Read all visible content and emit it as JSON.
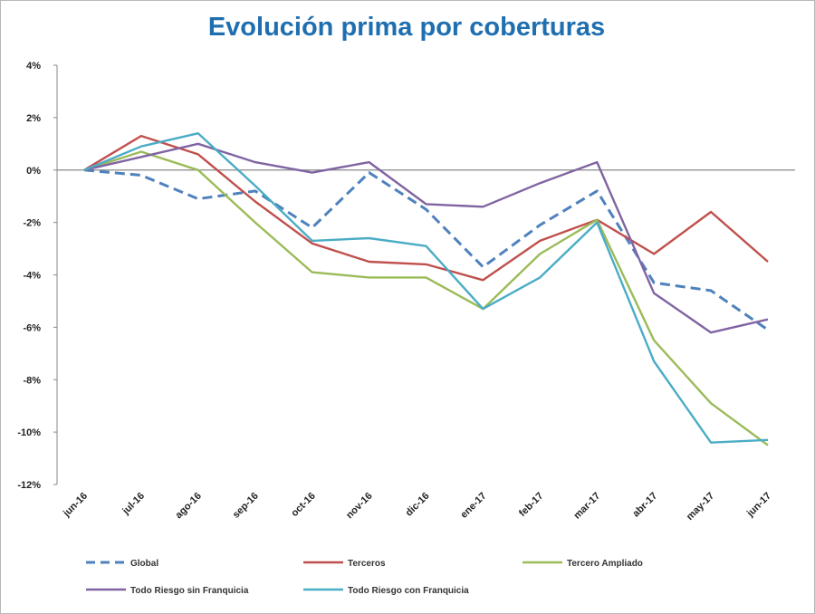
{
  "chart_data": {
    "type": "line",
    "title": "Evolución prima por coberturas",
    "xlabel": "",
    "ylabel": "",
    "categories": [
      "jun-16",
      "jul-16",
      "ago-16",
      "sep-16",
      "oct-16",
      "nov-16",
      "dic-16",
      "ene-17",
      "feb-17",
      "mar-17",
      "abr-17",
      "may-17",
      "jun-17"
    ],
    "ylim": [
      -12,
      4
    ],
    "yticks": [
      4,
      2,
      0,
      -2,
      -4,
      -6,
      -8,
      -10,
      -12
    ],
    "ytick_labels": [
      "4%",
      "2%",
      "0%",
      "-2%",
      "-4%",
      "-6%",
      "-8%",
      "-10%",
      "-12%"
    ],
    "grid": false,
    "legend_position": "bottom",
    "series": [
      {
        "name": "Global",
        "color": "#4f81bd",
        "dashed": true,
        "values": [
          0,
          -0.2,
          -1.1,
          -0.8,
          -2.2,
          -0.1,
          -1.5,
          -3.7,
          -2.1,
          -0.8,
          -4.3,
          -4.6,
          -6.1
        ]
      },
      {
        "name": "Terceros",
        "color": "#c0504d",
        "dashed": false,
        "values": [
          0,
          1.3,
          0.6,
          -1.2,
          -2.8,
          -3.5,
          -3.6,
          -4.2,
          -2.7,
          -1.9,
          -3.2,
          -1.6,
          -3.5
        ]
      },
      {
        "name": "Tercero Ampliado",
        "color": "#9bbb59",
        "dashed": false,
        "values": [
          0,
          0.7,
          0.0,
          -2.0,
          -3.9,
          -4.1,
          -4.1,
          -5.3,
          -3.2,
          -1.9,
          -6.5,
          -8.9,
          -10.5
        ]
      },
      {
        "name": "Todo Riesgo sin Franquicia",
        "color": "#8064a2",
        "dashed": false,
        "values": [
          0,
          0.5,
          1.0,
          0.3,
          -0.1,
          0.3,
          -1.3,
          -1.4,
          -0.5,
          0.3,
          -4.7,
          -6.2,
          -5.7
        ]
      },
      {
        "name": "Todo Riesgo con Franquicia",
        "color": "#4bacc6",
        "dashed": false,
        "values": [
          0,
          0.9,
          1.4,
          -0.6,
          -2.7,
          -2.6,
          -2.9,
          -5.3,
          -4.1,
          -2.0,
          -7.3,
          -10.4,
          -10.3
        ]
      }
    ]
  }
}
